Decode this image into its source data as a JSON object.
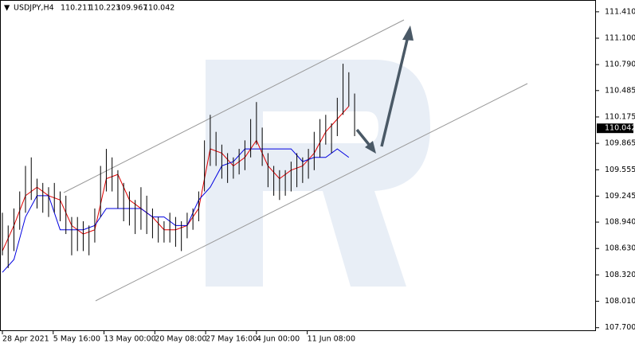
{
  "chart_data": {
    "type": "ohlc",
    "symbol": "USDJPY,H4",
    "open": 110.211,
    "high": 110.223,
    "low": 109.967,
    "close": 110.042,
    "xlim": [
      -2,
      512
    ],
    "ylim": [
      107.66,
      111.53
    ],
    "yticks": [
      {
        "value": 111.41,
        "label": "111.410"
      },
      {
        "value": 111.1,
        "label": "111.100"
      },
      {
        "value": 110.79,
        "label": "110.790"
      },
      110.485,
      110.175,
      109.865,
      109.555,
      109.245,
      {
        "value": 108.94,
        "label": "108.940"
      },
      {
        "value": 108.63,
        "label": "108.630"
      },
      {
        "value": 108.32,
        "label": "108.320"
      },
      {
        "value": 108.01,
        "label": "108.010"
      },
      {
        "value": 107.7,
        "label": "107.700"
      }
    ],
    "xticks": [
      {
        "value": 0,
        "label": "28 Apr 2021"
      },
      {
        "value": 44,
        "label": "5 May 16:00"
      },
      {
        "value": 88,
        "label": "13 May 00:00"
      },
      {
        "value": 132,
        "label": "20 May 08:00"
      },
      {
        "value": 176,
        "label": "27 May 16:00"
      },
      {
        "value": 220,
        "label": "4 Jun 00:00"
      },
      {
        "value": 264,
        "label": "11 Jun 08:00"
      }
    ],
    "bar_color": "#000000",
    "bars": {
      "x": [
        0,
        5,
        10,
        15,
        20,
        25,
        30,
        35,
        40,
        45,
        50,
        55,
        60,
        65,
        70,
        75,
        80,
        85,
        90,
        95,
        100,
        105,
        110,
        115,
        120,
        125,
        130,
        135,
        140,
        145,
        150,
        155,
        160,
        165,
        170,
        175,
        180,
        185,
        190,
        195,
        200,
        205,
        210,
        215,
        220,
        225,
        230,
        235,
        240,
        245,
        250,
        255,
        260,
        265,
        270,
        275,
        280,
        285,
        290,
        295,
        300,
        305
      ],
      "high": [
        109.05,
        108.9,
        109.1,
        109.3,
        109.6,
        109.7,
        109.45,
        109.4,
        109.35,
        109.4,
        109.3,
        109.25,
        109.0,
        109.0,
        108.95,
        108.9,
        109.1,
        109.6,
        109.8,
        109.7,
        109.55,
        109.4,
        109.3,
        109.2,
        109.35,
        109.25,
        109.1,
        109.0,
        108.95,
        109.05,
        109.0,
        108.95,
        109.05,
        109.1,
        109.3,
        109.9,
        110.2,
        110.0,
        109.85,
        109.75,
        109.7,
        109.8,
        109.9,
        110.15,
        110.35,
        110.05,
        109.75,
        109.6,
        109.55,
        109.55,
        109.65,
        109.75,
        109.7,
        109.8,
        110.0,
        110.15,
        110.2,
        110.1,
        110.4,
        110.8,
        110.7,
        110.45
      ],
      "low": [
        108.55,
        108.4,
        108.6,
        108.85,
        109.05,
        109.2,
        109.1,
        109.05,
        109.0,
        109.05,
        108.95,
        108.8,
        108.55,
        108.6,
        108.6,
        108.55,
        108.7,
        109.0,
        109.3,
        109.3,
        109.1,
        108.95,
        108.9,
        108.8,
        108.85,
        108.8,
        108.75,
        108.7,
        108.7,
        108.7,
        108.65,
        108.6,
        108.75,
        108.85,
        108.95,
        109.3,
        109.6,
        109.6,
        109.45,
        109.4,
        109.45,
        109.5,
        109.55,
        109.7,
        109.85,
        109.6,
        109.35,
        109.25,
        109.2,
        109.25,
        109.3,
        109.35,
        109.4,
        109.45,
        109.55,
        109.7,
        109.85,
        109.75,
        109.95,
        110.2,
        110.3,
        109.95
      ]
    },
    "lines": [
      {
        "color": "#e00000",
        "x": [
          0,
          10,
          20,
          30,
          40,
          50,
          60,
          70,
          80,
          90,
          100,
          110,
          120,
          130,
          140,
          150,
          160,
          170,
          180,
          190,
          200,
          210,
          220,
          230,
          240,
          250,
          260,
          270,
          280,
          290,
          300
        ],
        "values": [
          108.6,
          108.9,
          109.25,
          109.35,
          109.25,
          109.2,
          108.9,
          108.8,
          108.85,
          109.45,
          109.5,
          109.2,
          109.1,
          109.0,
          108.85,
          108.85,
          108.9,
          109.1,
          109.8,
          109.75,
          109.6,
          109.7,
          109.9,
          109.6,
          109.45,
          109.55,
          109.6,
          109.75,
          110.0,
          110.15,
          110.3
        ]
      },
      {
        "color": "#0000e0",
        "x": [
          0,
          10,
          20,
          30,
          40,
          50,
          60,
          70,
          80,
          90,
          100,
          110,
          120,
          130,
          140,
          150,
          160,
          170,
          180,
          190,
          200,
          210,
          220,
          230,
          240,
          250,
          260,
          270,
          280,
          290,
          300
        ],
        "values": [
          108.35,
          108.5,
          109.0,
          109.25,
          109.25,
          108.85,
          108.85,
          108.85,
          108.9,
          109.1,
          109.1,
          109.1,
          109.1,
          109.0,
          109.0,
          108.9,
          108.9,
          109.2,
          109.35,
          109.6,
          109.65,
          109.8,
          109.8,
          109.8,
          109.8,
          109.8,
          109.65,
          109.7,
          109.7,
          109.8,
          109.7
        ]
      }
    ]
  }
}
